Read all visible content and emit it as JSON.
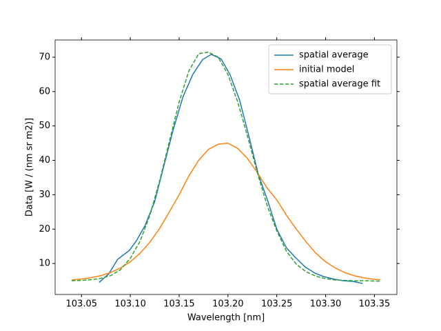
{
  "chart_data": {
    "type": "line",
    "xlabel": "Wavelength [nm]",
    "ylabel": "Data [W / (nm sr m2)]",
    "xlim": [
      103.023,
      103.373
    ],
    "ylim": [
      1,
      75
    ],
    "xticks": [
      {
        "value": 103.05,
        "label": "103.05"
      },
      {
        "value": 103.1,
        "label": "103.10"
      },
      {
        "value": 103.15,
        "label": "103.15"
      },
      {
        "value": 103.2,
        "label": "103.20"
      },
      {
        "value": 103.25,
        "label": "103.25"
      },
      {
        "value": 103.3,
        "label": "103.30"
      },
      {
        "value": 103.35,
        "label": "103.35"
      }
    ],
    "yticks": [
      10,
      20,
      30,
      40,
      50,
      60,
      70
    ],
    "legend": "upper right",
    "series": [
      {
        "name": "spatial average",
        "color": "#1f77b4",
        "dash": "solid",
        "x": [
          103.068,
          103.078,
          103.087,
          103.099,
          103.106,
          103.115,
          103.125,
          103.134,
          103.144,
          103.154,
          103.164,
          103.174,
          103.183,
          103.193,
          103.202,
          103.212,
          103.221,
          103.231,
          103.241,
          103.25,
          103.26,
          103.27,
          103.279,
          103.289,
          103.298,
          103.308,
          103.318,
          103.328,
          103.338
        ],
        "values": [
          4.5,
          7,
          11.2,
          13.8,
          16.5,
          21,
          28,
          38,
          49,
          58.5,
          65,
          69.3,
          70.8,
          69.5,
          65,
          57.5,
          47.5,
          36,
          28,
          20,
          14.5,
          11.5,
          9,
          7.2,
          6.2,
          5.5,
          5,
          4.8,
          4.2
        ]
      },
      {
        "name": "initial model",
        "color": "#ff7f0e",
        "dash": "solid",
        "x": [
          103.04,
          103.05,
          103.06,
          103.07,
          103.08,
          103.09,
          103.1,
          103.11,
          103.12,
          103.13,
          103.14,
          103.15,
          103.16,
          103.17,
          103.18,
          103.19,
          103.2,
          103.21,
          103.22,
          103.23,
          103.24,
          103.25,
          103.26,
          103.27,
          103.28,
          103.29,
          103.3,
          103.31,
          103.32,
          103.33,
          103.34,
          103.35,
          103.356
        ],
        "values": [
          5.2,
          5.5,
          5.9,
          6.5,
          7.4,
          8.7,
          10.5,
          13,
          16.2,
          20.2,
          25,
          30,
          35.5,
          40,
          43.2,
          44.7,
          45,
          43.5,
          40.5,
          36.5,
          32,
          28.5,
          24,
          20,
          16.3,
          13,
          10.5,
          8.7,
          7.3,
          6.4,
          5.8,
          5.4,
          5.3
        ]
      },
      {
        "name": "spatial average fit",
        "color": "#2ca02c",
        "dash": "dashed",
        "x": [
          103.04,
          103.05,
          103.06,
          103.07,
          103.08,
          103.09,
          103.1,
          103.11,
          103.12,
          103.13,
          103.14,
          103.15,
          103.16,
          103.17,
          103.18,
          103.19,
          103.2,
          103.21,
          103.22,
          103.23,
          103.24,
          103.25,
          103.26,
          103.27,
          103.28,
          103.29,
          103.3,
          103.31,
          103.32,
          103.33,
          103.34,
          103.35,
          103.356
        ],
        "values": [
          5,
          5.1,
          5.3,
          5.7,
          6.5,
          8.2,
          11.5,
          16.5,
          24,
          34,
          45.5,
          57,
          66,
          71,
          71.5,
          70,
          65,
          57,
          47,
          36.5,
          27,
          19.5,
          13.5,
          9.8,
          7.6,
          6.3,
          5.6,
          5.2,
          5.1,
          5,
          5,
          4.9,
          4.9
        ]
      }
    ]
  }
}
